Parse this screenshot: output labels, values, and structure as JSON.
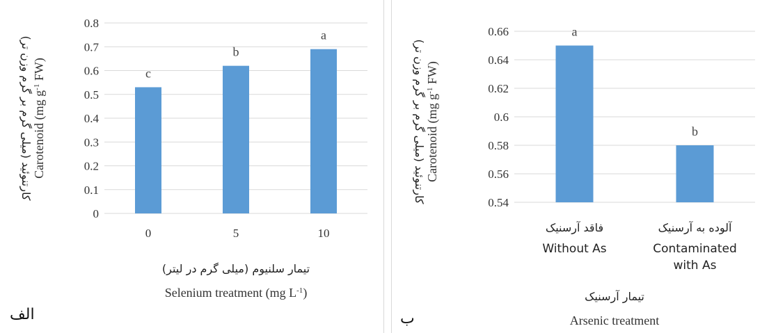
{
  "panels": [
    {
      "letter": "الف",
      "ylabel_fa": "کارتنوئید (میلی گرم بر گرم وزن تر)",
      "ylabel_en": "Carotenoid (mg g-1 FW)",
      "xlabel_fa": "تیمار سلنیوم (میلی گرم در لیتر)",
      "xlabel_en": "Selenium treatment (mg L-1)"
    },
    {
      "letter": "ب",
      "ylabel_fa": "کارتنوئید (میلی گرم بر گرم وزن تر)",
      "ylabel_en": "Carotenoid (mg g-1 FW)",
      "xlabel_fa": "تیمار آرسنیک",
      "xlabel_en": "Arsenic treatment"
    }
  ],
  "chart_data": [
    {
      "type": "bar",
      "categories": [
        "0",
        "5",
        "10"
      ],
      "values": [
        0.53,
        0.62,
        0.69
      ],
      "significance": [
        "c",
        "b",
        "a"
      ],
      "ylim": [
        0,
        0.8
      ],
      "yticks": [
        "0",
        "0.1",
        "0.2",
        "0.3",
        "0.4",
        "0.5",
        "0.6",
        "0.7",
        "0.8"
      ],
      "xlabel": "Selenium treatment (mg L-1)",
      "ylabel": "Carotenoid (mg g-1 FW)",
      "grid": true,
      "color": "#5b9bd5"
    },
    {
      "type": "bar",
      "categories": [
        {
          "fa": "فاقد آرسنیک",
          "en": "Without As"
        },
        {
          "fa": "آلوده به آرسنیک",
          "en": "Contaminated with As"
        }
      ],
      "values": [
        0.65,
        0.58
      ],
      "significance": [
        "a",
        "b"
      ],
      "ylim": [
        0.54,
        0.66
      ],
      "yticks": [
        "0.54",
        "0.56",
        "0.58",
        "0.6",
        "0.62",
        "0.64",
        "0.66"
      ],
      "xlabel": "Arsenic treatment",
      "ylabel": "Carotenoid (mg g-1 FW)",
      "grid": true,
      "color": "#5b9bd5"
    }
  ]
}
